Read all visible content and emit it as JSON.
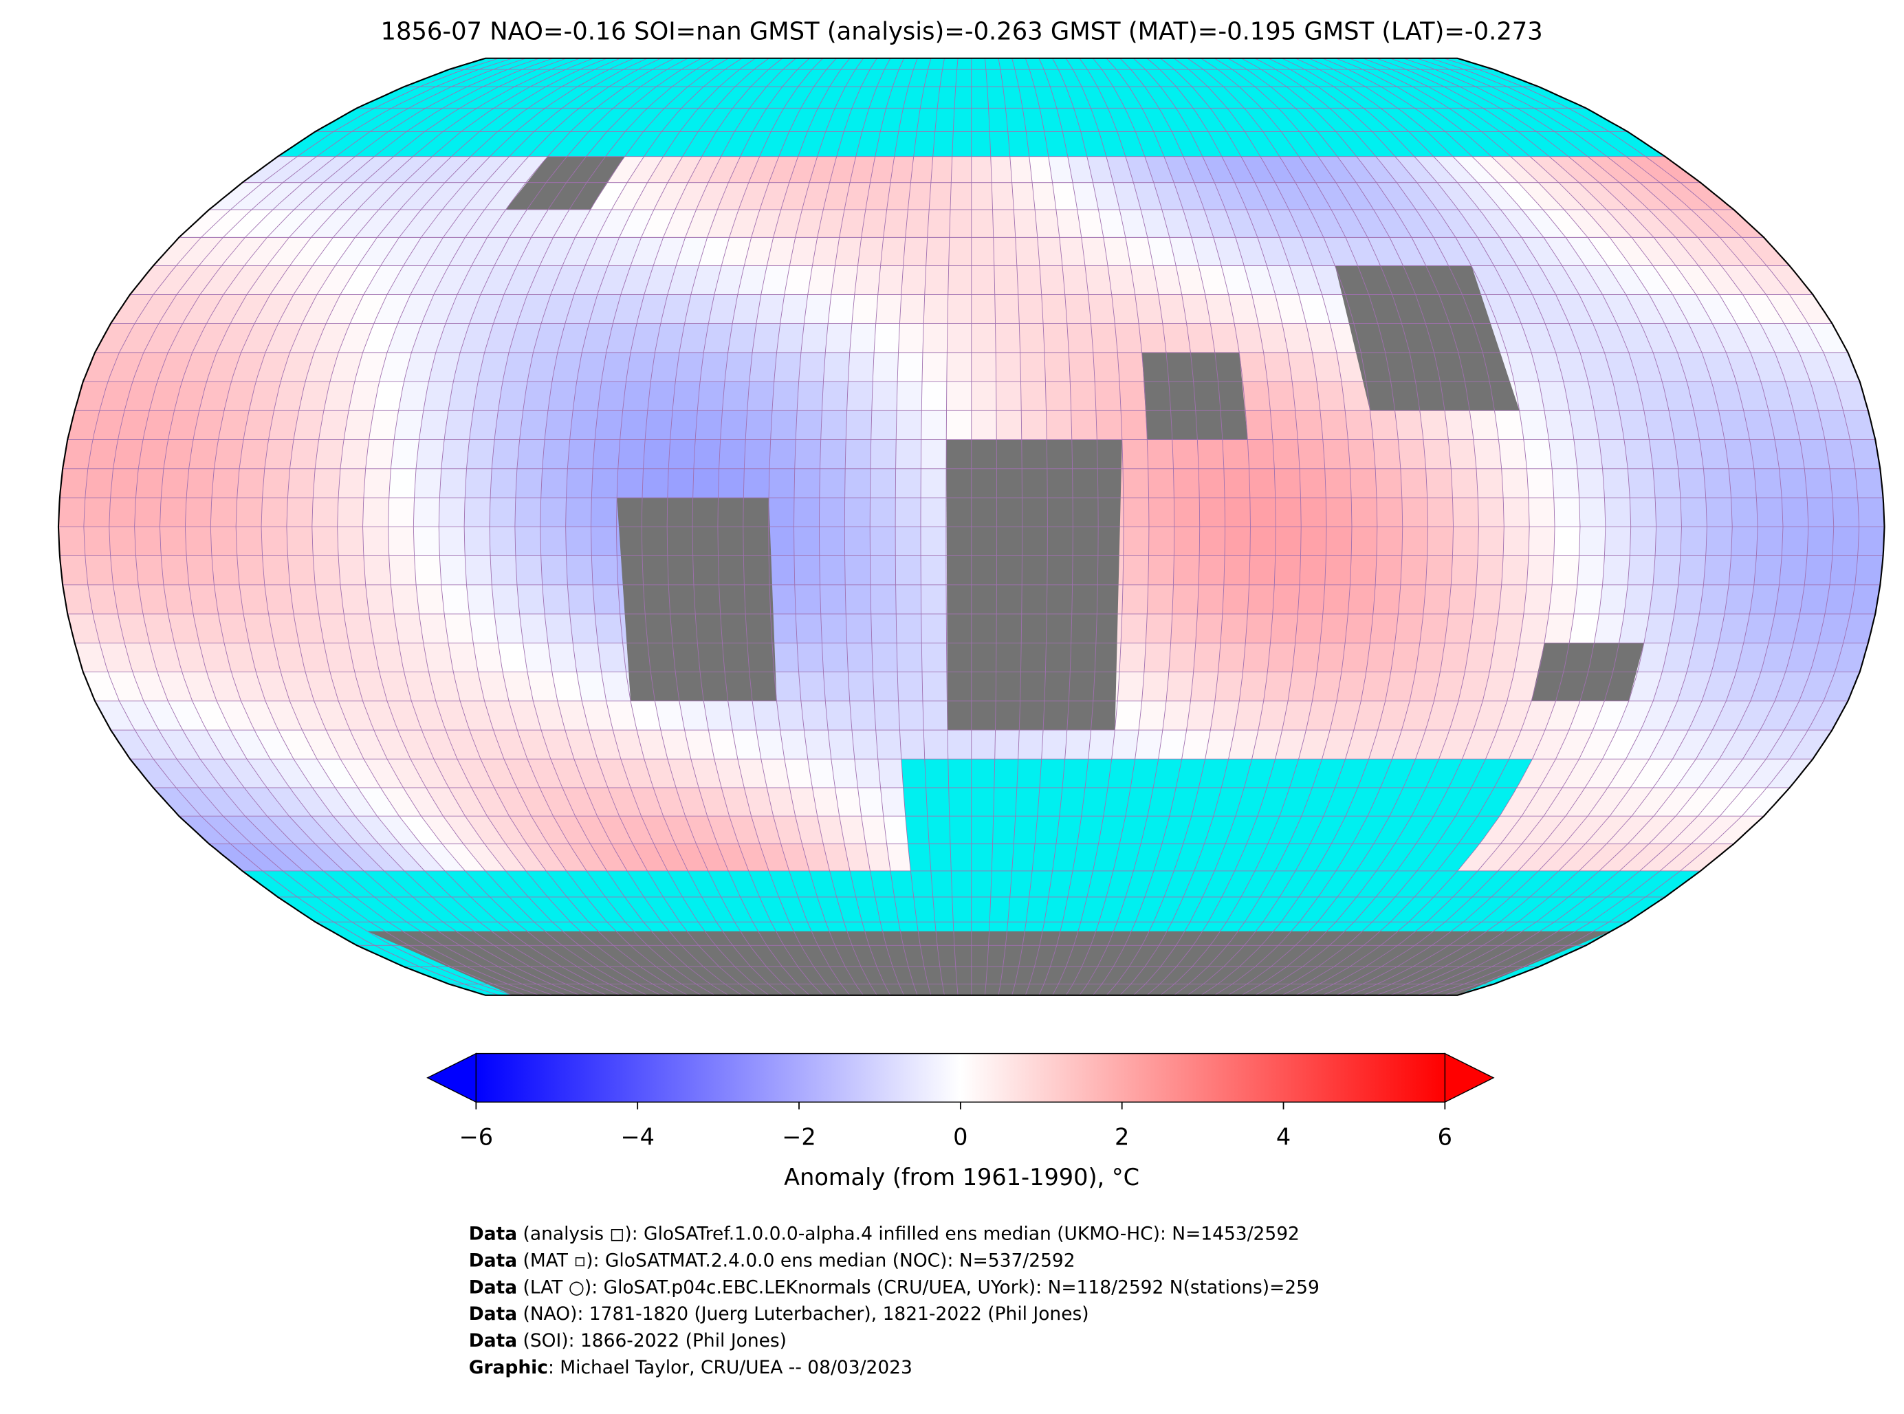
{
  "title": "1856-07 NAO=-0.16 SOI=nan GMST (analysis)=-0.263 GMST (MAT)=-0.195 GMST (LAT)=-0.273",
  "colorbar": {
    "label": "Anomaly (from 1961-1990), °C",
    "lim": [
      -6,
      6
    ],
    "ticks": [
      {
        "value": -6,
        "label": "−6"
      },
      {
        "value": -4,
        "label": "−4"
      },
      {
        "value": -2,
        "label": "−2"
      },
      0,
      2,
      4,
      6
    ]
  },
  "credits": [
    {
      "bold": "Data",
      "text": " (analysis ◻): GloSATref.1.0.0.0-alpha.4 infilled ens median (UKMO-HC): N=1453/2592"
    },
    {
      "bold": "Data",
      "text": " (MAT ▫): GloSATMAT.2.4.0.0 ens median (NOC): N=537/2592"
    },
    {
      "bold": "Data",
      "text": " (LAT ○): GloSAT.p04c.EBC.LEKnormals (CRU/UEA, UYork): N=118/2592 N(stations)=259"
    },
    {
      "bold": "Data",
      "text": " (NAO): 1781-1820 (Juerg Luterbacher), 1821-2022 (Phil Jones)"
    },
    {
      "bold": "Data",
      "text": " (SOI): 1866-2022 (Phil Jones)"
    },
    {
      "bold": "Graphic",
      "text": ": Michael Taylor, CRU/UEA -- 08/03/2023"
    }
  ]
}
